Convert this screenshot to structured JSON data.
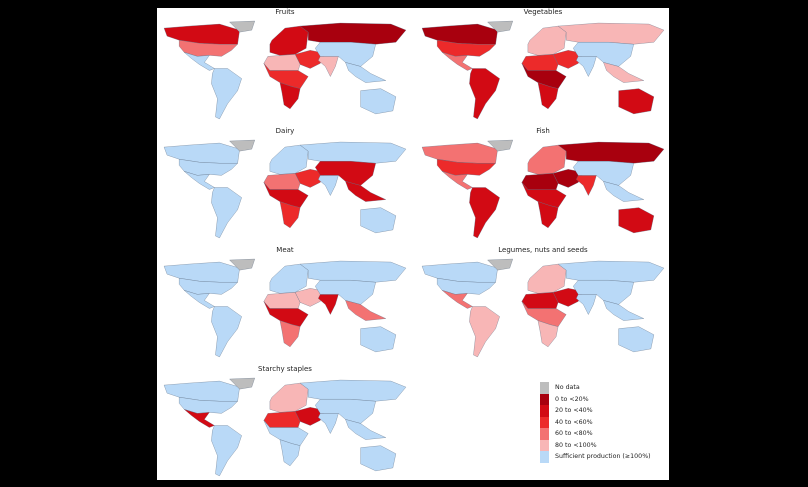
{
  "panels": [
    {
      "title": "Fruits",
      "regions": {
        "canada": 2,
        "greenland": 0,
        "usa": 4,
        "mexico": 6,
        "south_america": 6,
        "europe": 2,
        "russia": 1,
        "middle_east": 3,
        "north_africa": 5,
        "central_africa": 3,
        "southern_africa": 2,
        "south_asia": 5,
        "china": 6,
        "southeast_asia": 6,
        "australia": 6
      }
    },
    {
      "title": "Vegetables",
      "regions": {
        "canada": 1,
        "greenland": 0,
        "usa": 3,
        "mexico": 4,
        "south_america": 2,
        "europe": 5,
        "russia": 5,
        "middle_east": 3,
        "north_africa": 3,
        "central_africa": 1,
        "southern_africa": 2,
        "south_asia": 6,
        "china": 6,
        "southeast_asia": 5,
        "australia": 2
      }
    },
    {
      "title": "Dairy",
      "regions": {
        "canada": 6,
        "greenland": 0,
        "usa": 6,
        "mexico": 6,
        "south_america": 6,
        "europe": 6,
        "russia": 6,
        "middle_east": 3,
        "north_africa": 4,
        "central_africa": 2,
        "southern_africa": 3,
        "south_asia": 6,
        "china": 2,
        "southeast_asia": 2,
        "australia": 6
      }
    },
    {
      "title": "Fish",
      "regions": {
        "canada": 4,
        "greenland": 0,
        "usa": 3,
        "mexico": 4,
        "south_america": 2,
        "europe": 4,
        "russia": 1,
        "middle_east": 1,
        "north_africa": 1,
        "central_africa": 2,
        "southern_africa": 2,
        "south_asia": 3,
        "china": 6,
        "southeast_asia": 6,
        "australia": 2
      }
    },
    {
      "title": "Meat",
      "regions": {
        "canada": 6,
        "greenland": 0,
        "usa": 6,
        "mexico": 6,
        "south_america": 6,
        "europe": 6,
        "russia": 6,
        "middle_east": 5,
        "north_africa": 5,
        "central_africa": 2,
        "southern_africa": 4,
        "south_asia": 2,
        "china": 6,
        "southeast_asia": 4,
        "australia": 6
      }
    },
    {
      "title": "Legumes, nuts and seeds",
      "regions": {
        "canada": 6,
        "greenland": 0,
        "usa": 6,
        "mexico": 4,
        "south_america": 5,
        "europe": 5,
        "russia": 6,
        "middle_east": 2,
        "north_africa": 2,
        "central_africa": 4,
        "southern_africa": 5,
        "south_asia": 6,
        "china": 6,
        "southeast_asia": 6,
        "australia": 6
      }
    },
    {
      "title": "Starchy staples",
      "regions": {
        "canada": 6,
        "greenland": 0,
        "usa": 6,
        "mexico": 2,
        "south_america": 6,
        "europe": 5,
        "russia": 6,
        "middle_east": 2,
        "north_africa": 3,
        "central_africa": 6,
        "southern_africa": 6,
        "south_asia": 6,
        "china": 6,
        "southeast_asia": 6,
        "australia": 6
      }
    }
  ],
  "legend": [
    {
      "label": "No data",
      "color": "#bdbdbd"
    },
    {
      "label": "0 to <20%",
      "color": "#a8000e"
    },
    {
      "label": "20 to <40%",
      "color": "#d20a14"
    },
    {
      "label": "40 to <60%",
      "color": "#ec2a2a"
    },
    {
      "label": "60 to <80%",
      "color": "#f37272"
    },
    {
      "label": "80 to <100%",
      "color": "#f8b6b6"
    },
    {
      "label": "Sufficient production (≥100%)",
      "color": "#b9d9f7"
    }
  ]
}
